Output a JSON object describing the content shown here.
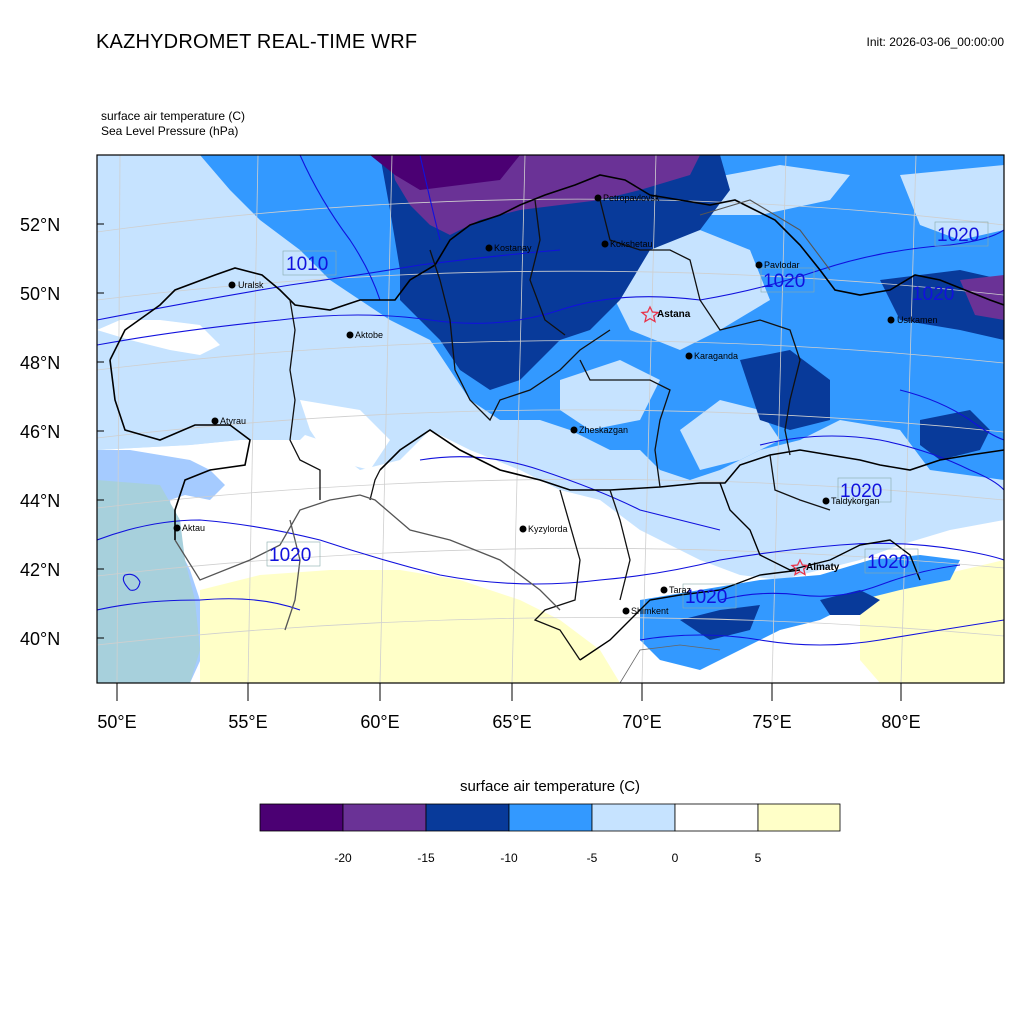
{
  "header": {
    "title": "KAZHYDROMET REAL-TIME WRF",
    "init": "Init: 2026-03-06_00:00:00",
    "var1": "surface air temperature   (C)",
    "var2": "Sea Level Pressure   (hPa)"
  },
  "map": {
    "lat_labels": [
      "52°N",
      "50°N",
      "48°N",
      "46°N",
      "44°N",
      "42°N",
      "40°N"
    ],
    "lon_labels": [
      "50°E",
      "55°E",
      "60°E",
      "65°E",
      "70°E",
      "75°E",
      "80°E"
    ],
    "cities": [
      "Uralsk",
      "Aktobe",
      "Kostanay",
      "Petropavlovsk",
      "Kokshetau",
      "Pavlodar",
      "Ustkamen",
      "Karaganda",
      "Atyrau",
      "Aktau",
      "Zheskazgan",
      "Kyzylorda",
      "Taldykorgan",
      "Taraz",
      "Shimkent"
    ],
    "capitals": [
      "Astana",
      "Almaty"
    ],
    "isobar_labels": [
      "1010",
      "1020",
      "1020",
      "1020",
      "1020",
      "1020",
      "1020",
      "1020"
    ],
    "colors": {
      "isobar": "#1111dd",
      "capital_star": "#e8334a"
    }
  },
  "colorbar": {
    "title": "surface air temperature (C)",
    "tick_labels": [
      "-20",
      "-15",
      "-10",
      "-5",
      "0",
      "5"
    ],
    "colors": [
      "#4b0073",
      "#6a3296",
      "#083a9a",
      "#3399ff",
      "#c6e3ff",
      "#ffffff",
      "#ffffc8"
    ]
  }
}
